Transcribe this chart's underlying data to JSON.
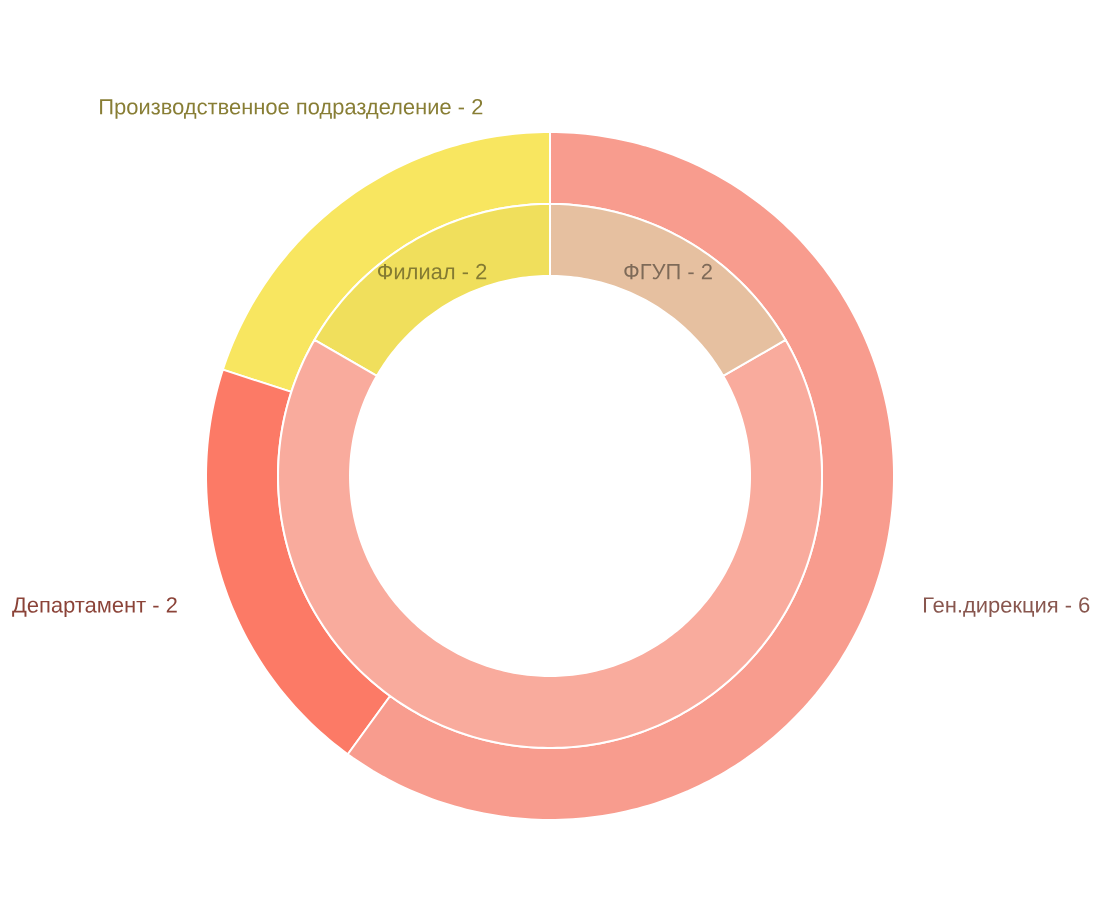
{
  "chart_data": [
    {
      "type": "donut",
      "categories": [
        "Производственное подразделение -",
        "Департамент -",
        "Ген.дирекция -"
      ],
      "values": [
        2,
        2,
        6
      ],
      "value_labels": [
        "2",
        "2",
        "6"
      ],
      "colors": [
        "#f8e660",
        "#fc7a66",
        "#f89c8e"
      ]
    },
    {
      "type": "donut",
      "categories": [
        "Филиал -",
        null,
        "ФГУП -"
      ],
      "values": [
        2,
        8,
        2
      ],
      "value_labels": [
        "2",
        null,
        "2"
      ],
      "colors": [
        "#f0df5c",
        "#f9ab9d",
        "#e6c0a0"
      ]
    }
  ]
}
